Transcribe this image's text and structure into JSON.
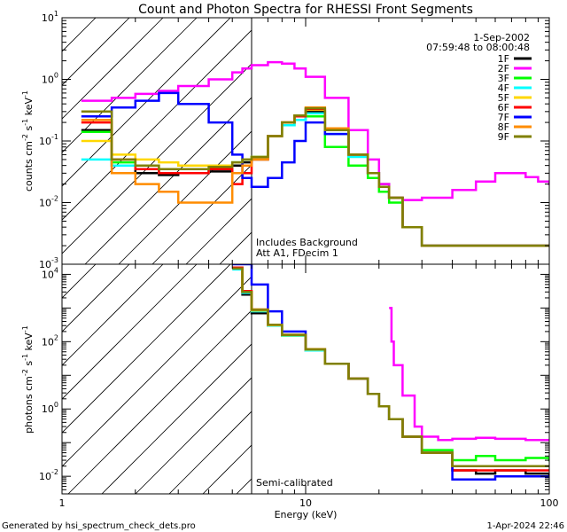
{
  "chart_data": [
    {
      "type": "line",
      "title": "Count and Photon Spectra for RHESSI Front Segments",
      "date": "1-Sep-2002",
      "time_range": "07:59:48 to 08:00:48",
      "xlabel": "Energy (keV)",
      "ylabel_parts": [
        "counts cm",
        "-2",
        " s",
        "-1",
        " keV",
        "-1"
      ],
      "xlim": [
        1,
        100
      ],
      "ylim": [
        0.001,
        10
      ],
      "xscale": "log",
      "yscale": "log",
      "x_ticks": [
        {
          "value": 1,
          "label": "1"
        },
        {
          "value": 10,
          "label": "10"
        },
        {
          "value": 100,
          "label": "100"
        }
      ],
      "y_ticks": [
        {
          "value": 0.001,
          "base": "10",
          "exp": "-3"
        },
        {
          "value": 0.01,
          "base": "10",
          "exp": "-2"
        },
        {
          "value": 0.1,
          "base": "10",
          "exp": "-1"
        },
        {
          "value": 1,
          "base": "10",
          "exp": "0"
        },
        {
          "value": 10,
          "base": "10",
          "exp": "1"
        }
      ],
      "shaded_below_keV": 6,
      "annotations": [
        "Includes Background",
        "Att A1, FDecim 1"
      ],
      "legend": {
        "position": "top-right"
      },
      "series": [
        {
          "name": "1F",
          "color": "#000000",
          "x": [
            1.2,
            1.6,
            2.0,
            2.5,
            3.0,
            4.0,
            5.0,
            5.5,
            6.0,
            7.0,
            8.0,
            9.0,
            10.0,
            12.0,
            15.0,
            18.0,
            20.0,
            22.0,
            25.0,
            30.0,
            40.0,
            50.0,
            60.0,
            70.0,
            80.0,
            90.0,
            100.0
          ],
          "y": [
            0.15,
            0.04,
            0.03,
            0.028,
            0.03,
            0.032,
            0.04,
            0.045,
            0.05,
            0.12,
            0.2,
            0.25,
            0.3,
            0.15,
            0.06,
            0.03,
            0.02,
            0.012,
            0.004,
            0.002,
            0.002,
            0.002,
            0.002,
            0.002,
            0.002,
            0.002,
            0.002
          ]
        },
        {
          "name": "2F",
          "color": "#ff00ff",
          "x": [
            1.2,
            1.6,
            2.0,
            2.5,
            3.0,
            4.0,
            5.0,
            5.5,
            6.0,
            7.0,
            8.0,
            9.0,
            10.0,
            12.0,
            15.0,
            18.0,
            20.0,
            22.0,
            25.0,
            30.0,
            40.0,
            50.0,
            60.0,
            70.0,
            80.0,
            90.0,
            100.0
          ],
          "y": [
            0.45,
            0.5,
            0.58,
            0.65,
            0.78,
            1.0,
            1.3,
            1.5,
            1.7,
            1.9,
            1.8,
            1.5,
            1.1,
            0.5,
            0.15,
            0.05,
            0.02,
            0.012,
            0.011,
            0.012,
            0.016,
            0.022,
            0.03,
            0.03,
            0.026,
            0.022,
            0.02
          ]
        },
        {
          "name": "3F",
          "color": "#00ff00",
          "x": [
            1.2,
            1.6,
            2.0,
            2.5,
            3.0,
            4.0,
            5.0,
            5.5,
            6.0,
            7.0,
            8.0,
            9.0,
            10.0,
            12.0,
            15.0,
            18.0,
            20.0,
            22.0,
            25.0,
            30.0,
            40.0,
            50.0,
            60.0,
            70.0,
            80.0,
            90.0,
            100.0
          ],
          "y": [
            0.14,
            0.045,
            0.035,
            0.03,
            0.03,
            0.035,
            0.045,
            0.05,
            0.055,
            0.12,
            0.18,
            0.22,
            0.25,
            0.08,
            0.04,
            0.025,
            0.015,
            0.01,
            0.004,
            0.002,
            0.002,
            0.002,
            0.002,
            0.002,
            0.002,
            0.002,
            0.002
          ]
        },
        {
          "name": "4F",
          "color": "#00ffff",
          "x": [
            1.2,
            1.6,
            2.0,
            2.5,
            3.0,
            4.0,
            5.0,
            5.5,
            6.0,
            7.0,
            8.0,
            9.0,
            10.0,
            12.0,
            15.0,
            18.0,
            20.0,
            22.0,
            25.0,
            30.0,
            40.0,
            50.0,
            60.0,
            70.0,
            80.0,
            90.0,
            100.0
          ],
          "y": [
            0.05,
            0.04,
            0.035,
            0.03,
            0.03,
            0.035,
            0.045,
            0.05,
            0.055,
            0.12,
            0.18,
            0.22,
            0.28,
            0.13,
            0.055,
            0.03,
            0.018,
            0.012,
            0.004,
            0.002,
            0.002,
            0.002,
            0.002,
            0.002,
            0.002,
            0.002,
            0.002
          ]
        },
        {
          "name": "5F",
          "color": "#ffd700",
          "x": [
            1.2,
            1.6,
            2.0,
            2.5,
            3.0,
            4.0,
            5.0,
            5.5,
            6.0,
            7.0,
            8.0,
            9.0,
            10.0,
            12.0,
            15.0,
            18.0,
            20.0,
            22.0,
            25.0,
            30.0,
            40.0,
            50.0,
            60.0,
            70.0,
            80.0,
            90.0,
            100.0
          ],
          "y": [
            0.1,
            0.06,
            0.05,
            0.045,
            0.04,
            0.04,
            0.045,
            0.05,
            0.055,
            0.12,
            0.2,
            0.26,
            0.32,
            0.15,
            0.06,
            0.03,
            0.018,
            0.012,
            0.004,
            0.002,
            0.002,
            0.002,
            0.002,
            0.002,
            0.002,
            0.002,
            0.002
          ]
        },
        {
          "name": "6F",
          "color": "#ff0000",
          "x": [
            1.2,
            1.6,
            2.0,
            2.5,
            3.0,
            4.0,
            5.0,
            5.5,
            6.0,
            7.0,
            8.0,
            9.0,
            10.0,
            12.0,
            15.0,
            18.0,
            20.0,
            22.0,
            25.0,
            30.0,
            40.0,
            50.0,
            60.0,
            70.0,
            80.0,
            90.0,
            100.0
          ],
          "y": [
            0.2,
            0.05,
            0.035,
            0.03,
            0.03,
            0.035,
            0.02,
            0.03,
            0.05,
            0.12,
            0.2,
            0.25,
            0.33,
            0.15,
            0.06,
            0.03,
            0.018,
            0.012,
            0.004,
            0.002,
            0.002,
            0.002,
            0.002,
            0.002,
            0.002,
            0.002,
            0.002
          ]
        },
        {
          "name": "7F",
          "color": "#0000ff",
          "x": [
            1.2,
            1.6,
            2.0,
            2.5,
            3.0,
            4.0,
            5.0,
            5.5,
            6.0,
            7.0,
            8.0,
            9.0,
            10.0,
            12.0,
            15.0,
            18.0,
            20.0,
            22.0,
            25.0,
            30.0,
            40.0,
            50.0,
            60.0,
            70.0,
            80.0,
            90.0,
            100.0
          ],
          "y": [
            0.25,
            0.35,
            0.45,
            0.6,
            0.4,
            0.2,
            0.06,
            0.025,
            0.018,
            0.025,
            0.045,
            0.1,
            0.2,
            0.13,
            0.06,
            0.03,
            0.018,
            0.012,
            0.004,
            0.002,
            0.002,
            0.002,
            0.002,
            0.002,
            0.002,
            0.002,
            0.002
          ]
        },
        {
          "name": "8F",
          "color": "#ff8c00",
          "x": [
            1.2,
            1.6,
            2.0,
            2.5,
            3.0,
            4.0,
            5.0,
            5.5,
            6.0,
            7.0,
            8.0,
            9.0,
            10.0,
            12.0,
            15.0,
            18.0,
            20.0,
            22.0,
            25.0,
            30.0,
            40.0,
            50.0,
            60.0,
            70.0,
            80.0,
            90.0,
            100.0
          ],
          "y": [
            0.22,
            0.03,
            0.02,
            0.015,
            0.01,
            0.01,
            0.03,
            0.04,
            0.05,
            0.12,
            0.2,
            0.26,
            0.35,
            0.16,
            0.06,
            0.03,
            0.018,
            0.012,
            0.004,
            0.002,
            0.002,
            0.002,
            0.002,
            0.002,
            0.002,
            0.002,
            0.002
          ]
        },
        {
          "name": "9F",
          "color": "#808000",
          "x": [
            1.2,
            1.6,
            2.0,
            2.5,
            3.0,
            4.0,
            5.0,
            5.5,
            6.0,
            7.0,
            8.0,
            9.0,
            10.0,
            12.0,
            15.0,
            18.0,
            20.0,
            22.0,
            25.0,
            30.0,
            40.0,
            50.0,
            60.0,
            70.0,
            80.0,
            90.0,
            100.0
          ],
          "y": [
            0.3,
            0.05,
            0.04,
            0.035,
            0.035,
            0.038,
            0.045,
            0.05,
            0.055,
            0.12,
            0.2,
            0.26,
            0.34,
            0.15,
            0.06,
            0.03,
            0.018,
            0.012,
            0.004,
            0.002,
            0.002,
            0.002,
            0.002,
            0.002,
            0.002,
            0.002,
            0.002
          ]
        }
      ]
    },
    {
      "type": "line",
      "xlabel": "Energy (keV)",
      "ylabel_parts": [
        "photons cm",
        "-2",
        " s",
        "-1",
        " keV",
        "-1"
      ],
      "xlim": [
        1,
        100
      ],
      "ylim": [
        0.003,
        20000
      ],
      "xscale": "log",
      "yscale": "log",
      "x_ticks": [
        {
          "value": 1,
          "label": "1"
        },
        {
          "value": 10,
          "label": "10"
        },
        {
          "value": 100,
          "label": "100"
        }
      ],
      "y_ticks": [
        {
          "value": 0.01,
          "base": "10",
          "exp": "-2"
        },
        {
          "value": 1,
          "base": "10",
          "exp": "0"
        },
        {
          "value": 100,
          "base": "10",
          "exp": "2"
        },
        {
          "value": 10000,
          "base": "10",
          "exp": "4"
        }
      ],
      "shaded_below_keV": 6,
      "annotations": [
        "Semi-calibrated"
      ],
      "series": [
        {
          "name": "1F",
          "color": "#000000",
          "x": [
            5.0,
            5.5,
            6.0,
            7.0,
            8.0,
            10.0,
            12.0,
            15.0,
            18.0,
            20.0,
            22.0,
            25.0,
            30.0,
            40.0,
            50.0,
            60.0,
            80.0,
            100.0
          ],
          "y": [
            15000,
            2500,
            700,
            300,
            150,
            55,
            22,
            8,
            2.8,
            1.2,
            0.5,
            0.15,
            0.05,
            0.015,
            0.012,
            0.015,
            0.012,
            0.01
          ]
        },
        {
          "name": "2F",
          "color": "#ff00ff",
          "x": [
            22.0,
            22.5,
            23.0,
            25.0,
            28.0,
            30.0,
            35.0,
            40.0,
            50.0,
            60.0,
            80.0,
            100.0
          ],
          "y": [
            1000,
            100,
            20,
            2.5,
            0.3,
            0.15,
            0.12,
            0.13,
            0.14,
            0.13,
            0.12,
            0.12
          ]
        },
        {
          "name": "3F",
          "color": "#00ff00",
          "x": [
            5.0,
            5.5,
            6.0,
            7.0,
            8.0,
            10.0,
            12.0,
            15.0,
            18.0,
            20.0,
            22.0,
            25.0,
            30.0,
            40.0,
            50.0,
            60.0,
            80.0,
            100.0
          ],
          "y": [
            15000,
            3000,
            900,
            320,
            160,
            60,
            22,
            8,
            2.8,
            1.2,
            0.5,
            0.15,
            0.06,
            0.03,
            0.04,
            0.03,
            0.035,
            0.03
          ]
        },
        {
          "name": "4F",
          "color": "#00ffff",
          "x": [
            5.0,
            5.5,
            6.0,
            7.0,
            8.0,
            10.0,
            12.0,
            15.0,
            18.0,
            20.0,
            22.0,
            25.0,
            30.0,
            40.0,
            50.0,
            60.0,
            80.0,
            100.0
          ],
          "y": [
            14000,
            2800,
            800,
            300,
            150,
            55,
            22,
            8,
            2.8,
            1.2,
            0.5,
            0.15,
            0.05,
            0.02,
            0.02,
            0.02,
            0.02,
            0.02
          ]
        },
        {
          "name": "5F",
          "color": "#ffd700",
          "x": [
            5.0,
            5.5,
            6.0,
            7.0,
            8.0,
            10.0,
            12.0,
            15.0,
            18.0,
            20.0,
            22.0,
            25.0,
            30.0,
            40.0,
            50.0,
            60.0,
            80.0,
            100.0
          ],
          "y": [
            15000,
            3000,
            850,
            310,
            155,
            58,
            22,
            8,
            2.8,
            1.2,
            0.5,
            0.15,
            0.05,
            0.02,
            0.02,
            0.02,
            0.02,
            0.02
          ]
        },
        {
          "name": "6F",
          "color": "#ff0000",
          "x": [
            5.0,
            5.5,
            6.0,
            7.0,
            8.0,
            10.0,
            12.0,
            15.0,
            18.0,
            20.0,
            22.0,
            25.0,
            30.0,
            40.0,
            50.0,
            60.0,
            80.0,
            100.0
          ],
          "y": [
            16000,
            3200,
            900,
            320,
            160,
            60,
            22,
            8,
            2.8,
            1.2,
            0.5,
            0.15,
            0.05,
            0.015,
            0.015,
            0.015,
            0.015,
            0.015
          ]
        },
        {
          "name": "7F",
          "color": "#0000ff",
          "x": [
            5.0,
            5.5,
            6.0,
            7.0,
            8.0,
            10.0,
            12.0,
            15.0,
            18.0,
            20.0,
            22.0,
            25.0,
            30.0,
            40.0,
            50.0,
            60.0,
            80.0,
            100.0
          ],
          "y": [
            20000,
            20000,
            5000,
            800,
            200,
            60,
            22,
            8,
            2.8,
            1.2,
            0.5,
            0.15,
            0.05,
            0.008,
            0.008,
            0.01,
            0.01,
            0.01
          ]
        },
        {
          "name": "8F",
          "color": "#ff8c00",
          "x": [
            5.0,
            5.5,
            6.0,
            7.0,
            8.0,
            10.0,
            12.0,
            15.0,
            18.0,
            20.0,
            22.0,
            25.0,
            30.0,
            40.0,
            50.0,
            60.0,
            80.0,
            100.0
          ],
          "y": [
            15000,
            3000,
            900,
            320,
            160,
            60,
            22,
            8,
            2.8,
            1.2,
            0.5,
            0.15,
            0.05,
            0.02,
            0.02,
            0.02,
            0.02,
            0.02
          ]
        },
        {
          "name": "9F",
          "color": "#808000",
          "x": [
            5.0,
            5.5,
            6.0,
            7.0,
            8.0,
            10.0,
            12.0,
            15.0,
            18.0,
            20.0,
            22.0,
            25.0,
            30.0,
            40.0,
            50.0,
            60.0,
            80.0,
            100.0
          ],
          "y": [
            15000,
            3000,
            880,
            315,
            158,
            59,
            22,
            8,
            2.8,
            1.2,
            0.5,
            0.15,
            0.05,
            0.02,
            0.02,
            0.02,
            0.02,
            0.02
          ]
        }
      ]
    }
  ],
  "footer": {
    "left": "Generated by hsi_spectrum_check_dets.pro",
    "right": "1-Apr-2024 22:46"
  }
}
